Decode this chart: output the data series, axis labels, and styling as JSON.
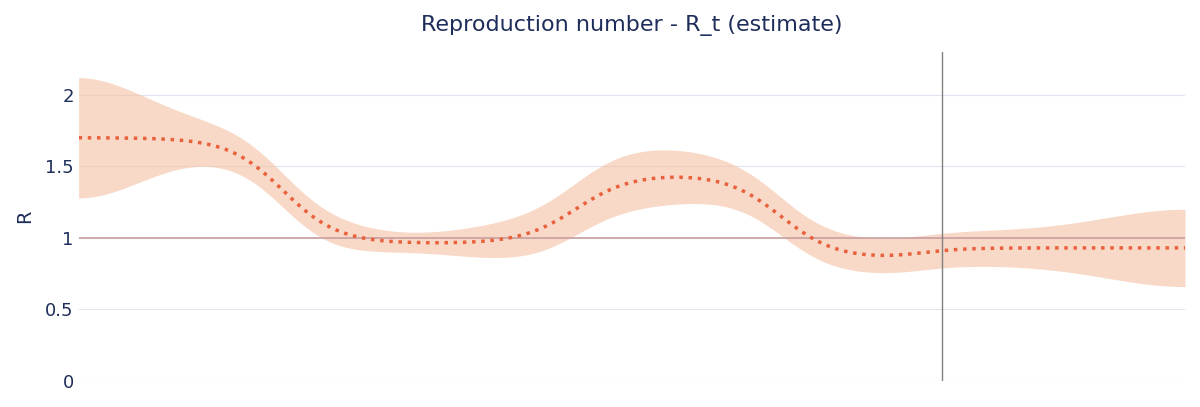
{
  "title": "Reproduction number - R_t (estimate)",
  "ylabel": "R",
  "background_color": "#ffffff",
  "grid_color": "#e0e4ef",
  "line_color": "#e8603c",
  "band_color": "#f5c4a8",
  "hline_color": "#c9a0a0",
  "vline_color": "#808080",
  "title_color": "#1e2d5a",
  "ylabel_color": "#1e2d5a",
  "tick_color": "#1e2d5a",
  "ylim": [
    0,
    2.3
  ],
  "yticks": [
    0,
    0.5,
    1,
    1.5,
    2
  ],
  "vline_x": 0.78,
  "figsize": [
    12.0,
    4.07
  ],
  "dpi": 100
}
